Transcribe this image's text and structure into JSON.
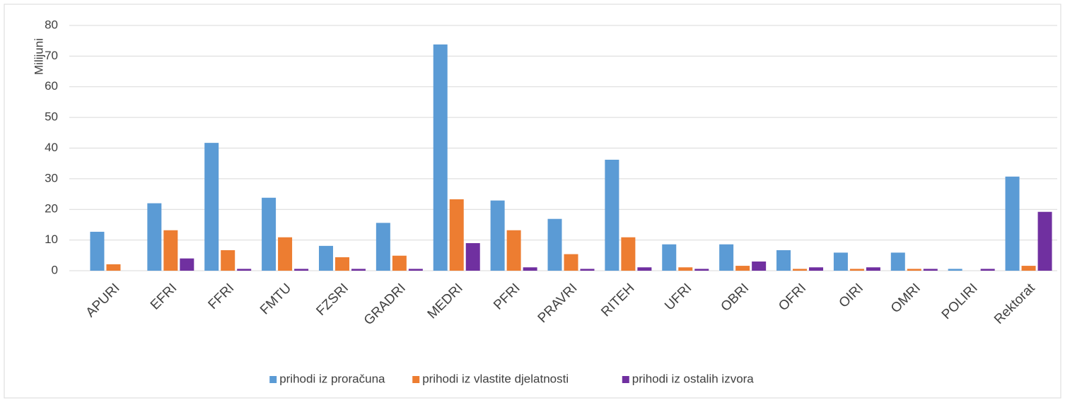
{
  "chart_data": {
    "type": "bar",
    "y_label": "Milijuni",
    "categories": [
      "APURI",
      "EFRI",
      "FFRI",
      "FMTU",
      "FZSRI",
      "GRADRI",
      "MEDRI",
      "PFRI",
      "PRAVRI",
      "RITEH",
      "UFRI",
      "OBRI",
      "OFRI",
      "OIRI",
      "OMRI",
      "POLIRI",
      "Rektorat"
    ],
    "series": [
      {
        "name": "prihodi iz proračuna",
        "color": "#5b9bd5",
        "values": [
          12.7,
          22,
          41.7,
          23.8,
          8.1,
          15.6,
          73.8,
          22.9,
          16.9,
          36.2,
          8.6,
          8.6,
          6.7,
          5.9,
          5.9,
          0.6,
          30.7
        ]
      },
      {
        "name": "prihodi iz vlastite djelatnosti",
        "color": "#ed7d31",
        "values": [
          2.1,
          13.2,
          6.7,
          10.9,
          4.4,
          4.9,
          23.3,
          13.2,
          5.4,
          10.9,
          1.1,
          1.6,
          0.6,
          0.6,
          0.6,
          0,
          1.6
        ]
      },
      {
        "name": "prihodi iz ostalih izvora",
        "color": "#7030a0",
        "values": [
          0,
          4,
          0.6,
          0.6,
          0.6,
          0.6,
          9,
          1.1,
          0.6,
          1.1,
          0.6,
          3,
          1.1,
          1.1,
          0.6,
          0.6,
          19.2
        ]
      }
    ],
    "ylim": [
      0,
      80
    ],
    "yticks": [
      0,
      10,
      20,
      30,
      40,
      50,
      60,
      70,
      80
    ],
    "grid": true,
    "legend": "bottom"
  }
}
